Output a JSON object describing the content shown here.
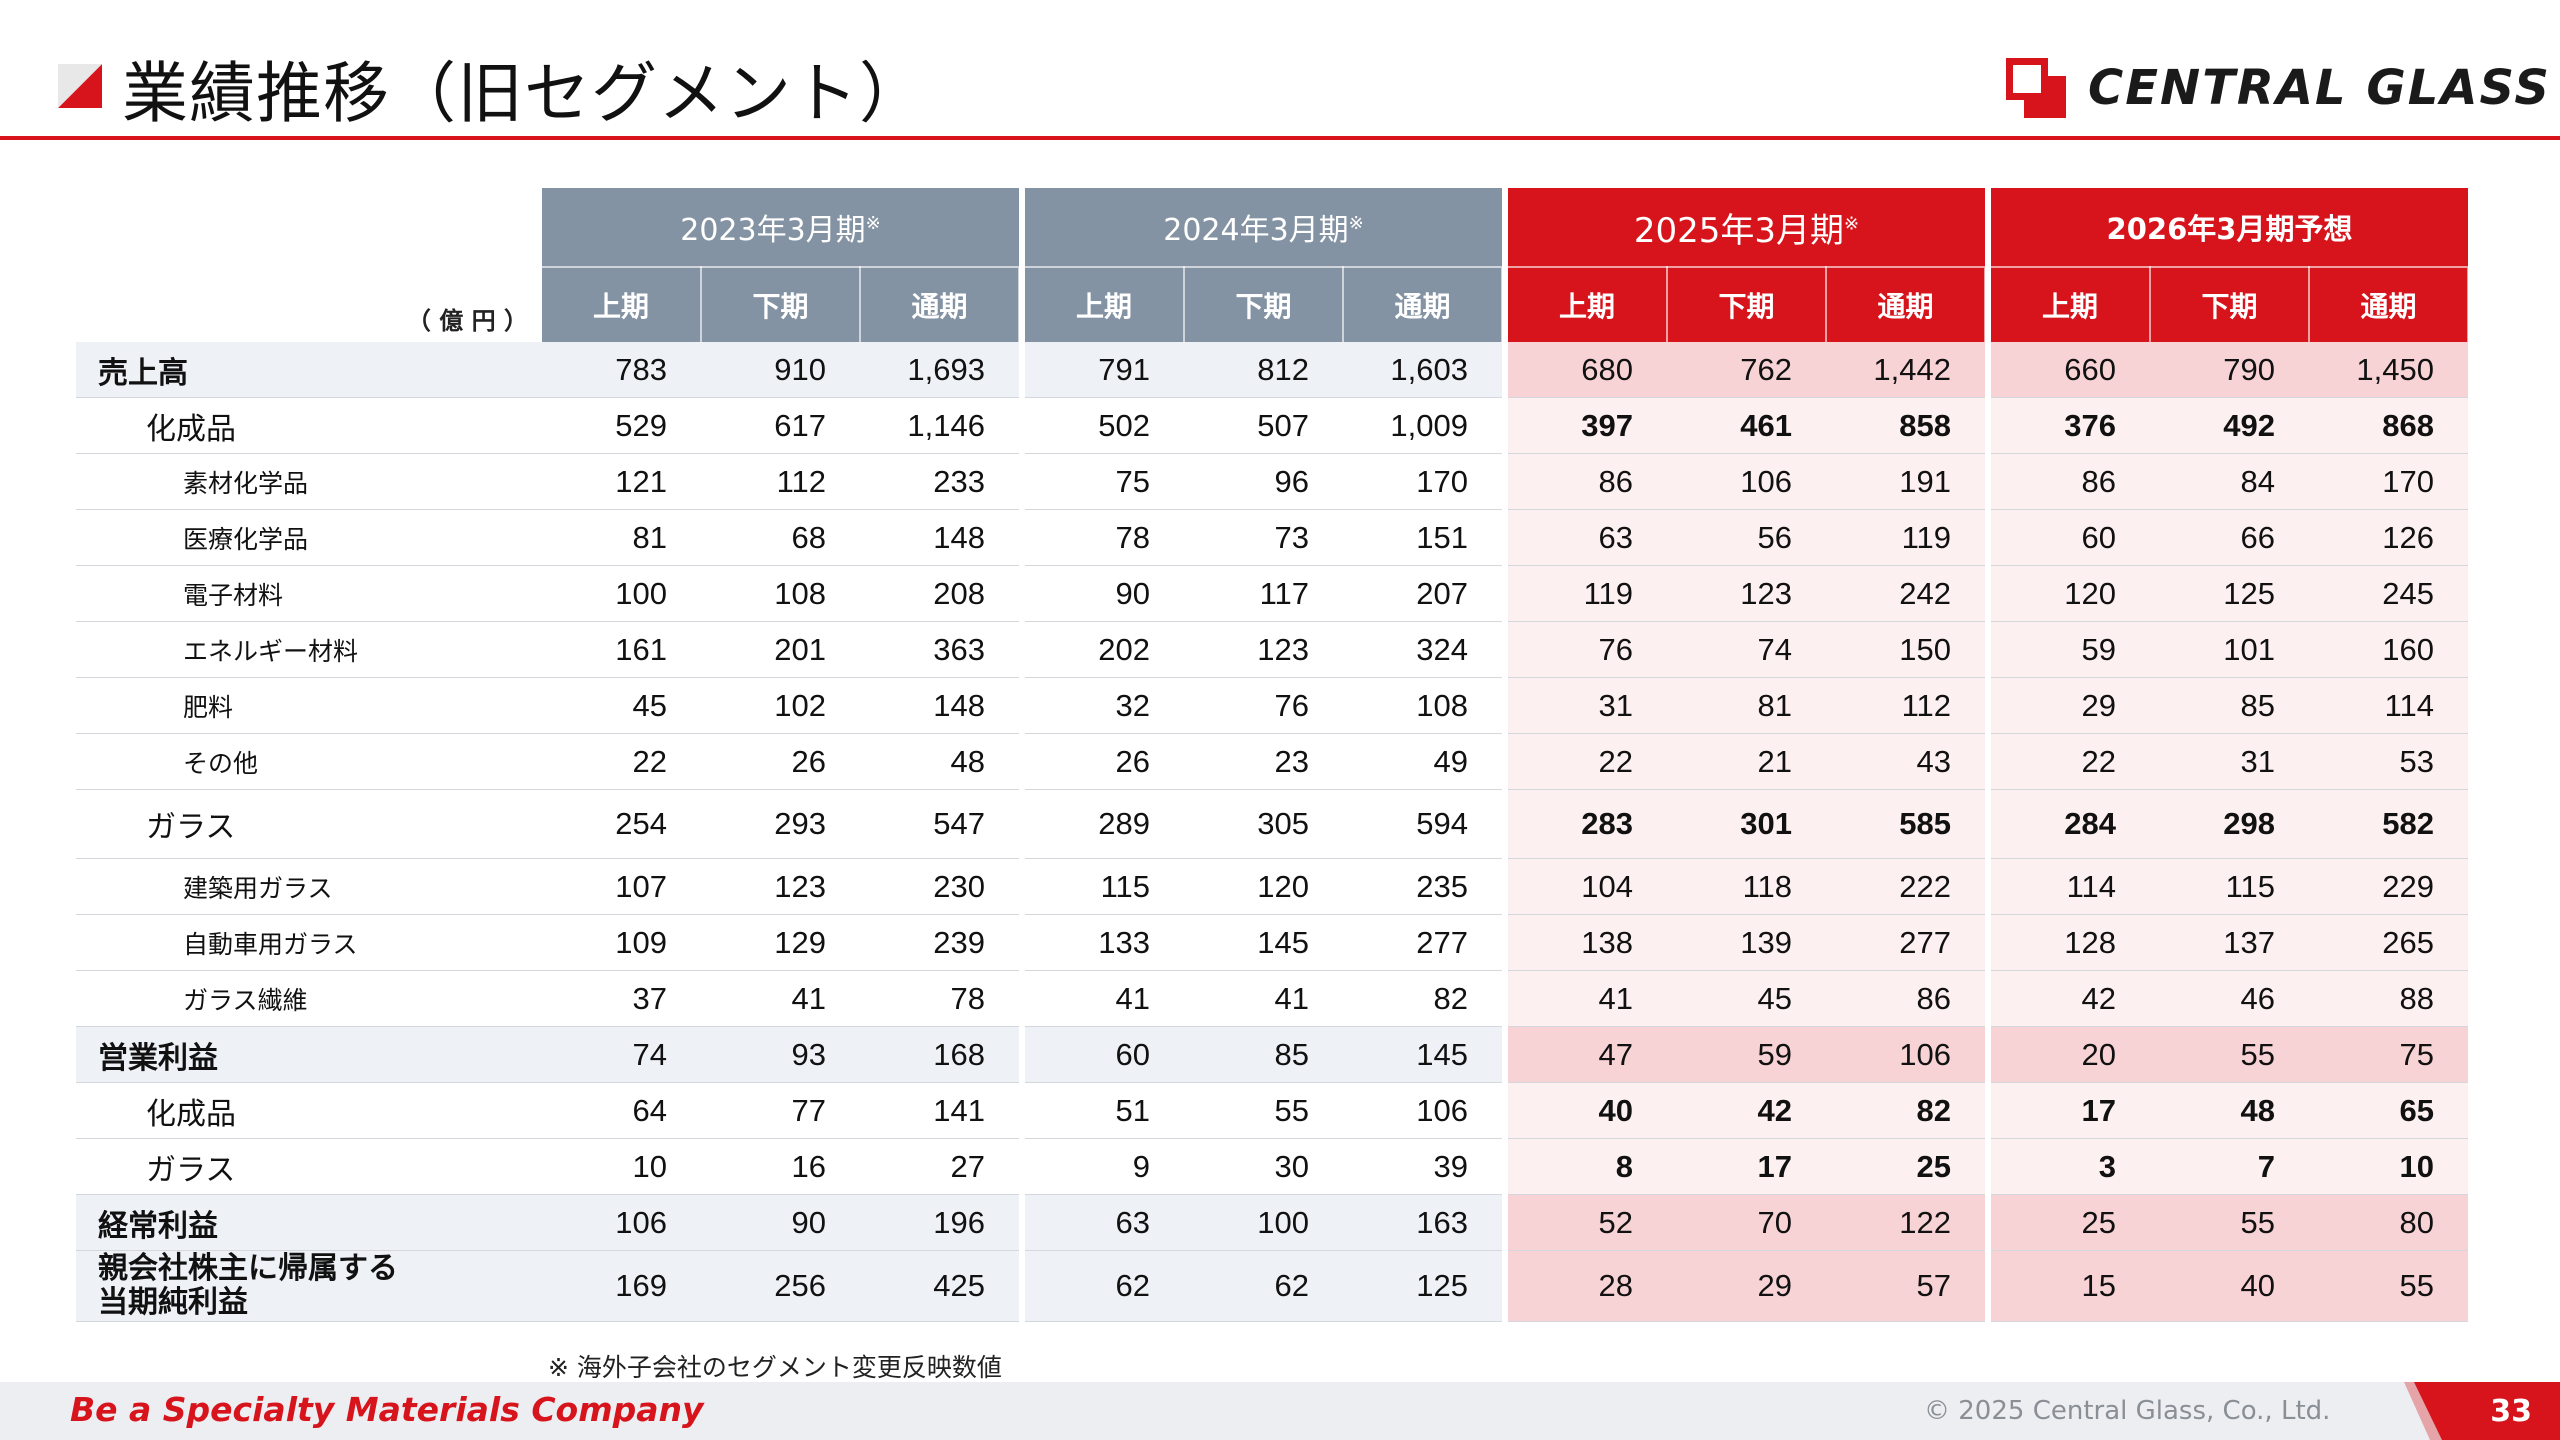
{
  "header": {
    "title": "業績推移（旧セグメント）",
    "logo_text": "CENTRAL GLASS",
    "accent_color": "#d7141c"
  },
  "table": {
    "unit": "（ 億 円 ）",
    "groups": [
      {
        "label": "2023年3月期",
        "mark": "※"
      },
      {
        "label": "2024年3月期",
        "mark": "※"
      },
      {
        "label": "2025年3月期",
        "mark": "※"
      },
      {
        "label": "2026年3月期予想",
        "mark": ""
      }
    ],
    "subheaders": [
      "上期",
      "下期",
      "通期"
    ],
    "rows": [
      {
        "label": "売上高",
        "values": [
          "783",
          "910",
          "1,693",
          "791",
          "812",
          "1,603",
          "680",
          "762",
          "1,442",
          "660",
          "790",
          "1,450"
        ]
      },
      {
        "label": "化成品",
        "values": [
          "529",
          "617",
          "1,146",
          "502",
          "507",
          "1,009",
          "397",
          "461",
          "858",
          "376",
          "492",
          "868"
        ]
      },
      {
        "label": "素材化学品",
        "values": [
          "121",
          "112",
          "233",
          "75",
          "96",
          "170",
          "86",
          "106",
          "191",
          "86",
          "84",
          "170"
        ]
      },
      {
        "label": "医療化学品",
        "values": [
          "81",
          "68",
          "148",
          "78",
          "73",
          "151",
          "63",
          "56",
          "119",
          "60",
          "66",
          "126"
        ]
      },
      {
        "label": "電子材料",
        "values": [
          "100",
          "108",
          "208",
          "90",
          "117",
          "207",
          "119",
          "123",
          "242",
          "120",
          "125",
          "245"
        ]
      },
      {
        "label": "エネルギー材料",
        "values": [
          "161",
          "201",
          "363",
          "202",
          "123",
          "324",
          "76",
          "74",
          "150",
          "59",
          "101",
          "160"
        ]
      },
      {
        "label": "肥料",
        "values": [
          "45",
          "102",
          "148",
          "32",
          "76",
          "108",
          "31",
          "81",
          "112",
          "29",
          "85",
          "114"
        ]
      },
      {
        "label": "その他",
        "values": [
          "22",
          "26",
          "48",
          "26",
          "23",
          "49",
          "22",
          "21",
          "43",
          "22",
          "31",
          "53"
        ]
      },
      {
        "label": "ガラス",
        "values": [
          "254",
          "293",
          "547",
          "289",
          "305",
          "594",
          "283",
          "301",
          "585",
          "284",
          "298",
          "582"
        ]
      },
      {
        "label": "建築用ガラス",
        "values": [
          "107",
          "123",
          "230",
          "115",
          "120",
          "235",
          "104",
          "118",
          "222",
          "114",
          "115",
          "229"
        ]
      },
      {
        "label": "自動車用ガラス",
        "values": [
          "109",
          "129",
          "239",
          "133",
          "145",
          "277",
          "138",
          "139",
          "277",
          "128",
          "137",
          "265"
        ]
      },
      {
        "label": "ガラス繊維",
        "values": [
          "37",
          "41",
          "78",
          "41",
          "41",
          "82",
          "41",
          "45",
          "86",
          "42",
          "46",
          "88"
        ]
      },
      {
        "label": "営業利益",
        "values": [
          "74",
          "93",
          "168",
          "60",
          "85",
          "145",
          "47",
          "59",
          "106",
          "20",
          "55",
          "75"
        ]
      },
      {
        "label": "化成品",
        "values": [
          "64",
          "77",
          "141",
          "51",
          "55",
          "106",
          "40",
          "42",
          "82",
          "17",
          "48",
          "65"
        ]
      },
      {
        "label": "ガラス",
        "values": [
          "10",
          "16",
          "27",
          "9",
          "30",
          "39",
          "8",
          "17",
          "25",
          "3",
          "7",
          "10"
        ]
      },
      {
        "label": "経常利益",
        "values": [
          "106",
          "90",
          "196",
          "63",
          "100",
          "163",
          "52",
          "70",
          "122",
          "25",
          "55",
          "80"
        ]
      },
      {
        "label_line1": "親会社株主に帰属する",
        "label_line2": "当期純利益",
        "values": [
          "169",
          "256",
          "425",
          "62",
          "62",
          "125",
          "28",
          "29",
          "57",
          "15",
          "40",
          "55"
        ]
      }
    ],
    "note": "※ 海外子会社のセグメント変更反映数値"
  },
  "footer": {
    "slogan": "Be a Specialty Materials Company",
    "copyright": "© 2025 Central Glass, Co., Ltd.",
    "page": "33"
  }
}
